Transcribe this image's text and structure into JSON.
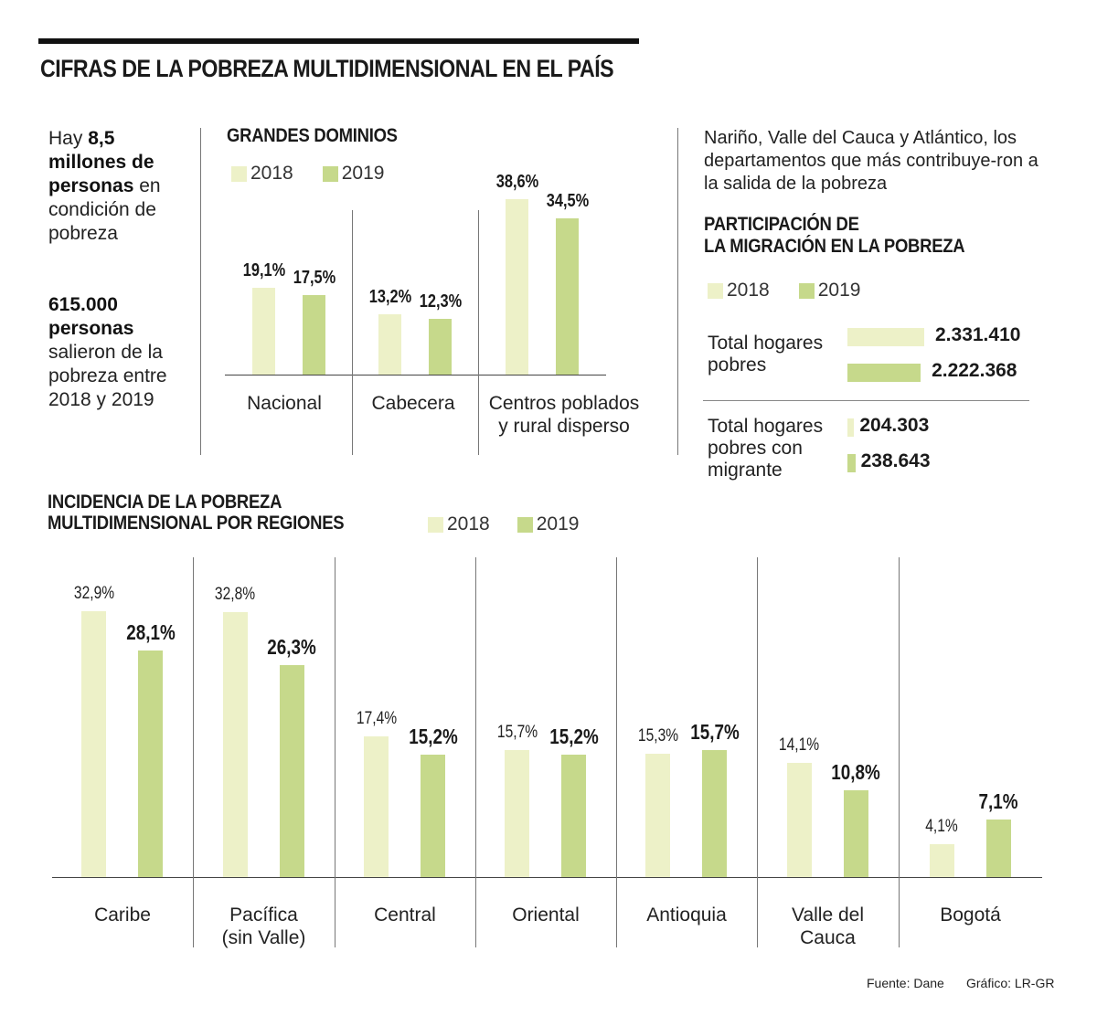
{
  "header": {
    "title": "CIFRAS DE LA POBREZA MULTIDIMENSIONAL EN EL PAÍS"
  },
  "intro": {
    "block1": {
      "prefix": "Hay ",
      "bold": "8,5 millones de personas",
      "suffix": " en condición de pobreza"
    },
    "block2": {
      "bold": "615.000 personas",
      "suffix": " salieron de la pobreza entre 2018 y 2019"
    }
  },
  "colors": {
    "y2018": "#edf1c8",
    "y2019": "#c6d98b",
    "text": "#1a1a1a",
    "rule": "#111111"
  },
  "legend": {
    "y2018": "2018",
    "y2019": "2019"
  },
  "note": "Nariño, Valle del Cauca y Atlántico, los departamentos que más contribuye-ron a la salida de la pobreza",
  "migration": {
    "title_line1": "PARTICIPACIÓN DE",
    "title_line2": "LA MIGRACIÓN EN LA POBREZA",
    "rows": [
      {
        "label": "Total hogares pobres",
        "v2018": 2331410,
        "v2019": 2222368,
        "v2018_label": "2.331.410",
        "v2019_label": "2.222.368"
      },
      {
        "label": "Total hogares pobres con migrante",
        "v2018": 204303,
        "v2019": 238643,
        "v2018_label": "204.303",
        "v2019_label": "238.643"
      }
    ]
  },
  "footer": {
    "source": "Fuente: Dane",
    "credit": "Gráfico: LR-GR"
  },
  "chart_data": [
    {
      "type": "bar",
      "title": "GRANDES DOMINIOS",
      "xlabel": "",
      "ylabel": "",
      "ylim": [
        0,
        40
      ],
      "grid": false,
      "legend": "top-left",
      "categories": [
        "Nacional",
        "Cabecera",
        "Centros poblados y rural disperso"
      ],
      "series": [
        {
          "name": "2018",
          "values": [
            19.1,
            13.2,
            38.6
          ],
          "labels": [
            "19,1%",
            "13,2%",
            "38,6%"
          ]
        },
        {
          "name": "2019",
          "values": [
            17.5,
            12.3,
            34.5
          ],
          "labels": [
            "17,5%",
            "12,3%",
            "34,5%"
          ]
        }
      ]
    },
    {
      "type": "bar",
      "title": "INCIDENCIA DE LA POBREZA MULTIDIMENSIONAL POR REGIONES",
      "xlabel": "",
      "ylabel": "",
      "ylim": [
        0,
        36
      ],
      "grid": false,
      "legend": "top-right of title",
      "categories": [
        "Caribe",
        "Pacífica (sin Valle)",
        "Central",
        "Oriental",
        "Antioquia",
        "Valle del Cauca",
        "Bogotá"
      ],
      "series": [
        {
          "name": "2018",
          "values": [
            32.9,
            32.8,
            17.4,
            15.7,
            15.3,
            14.1,
            4.1
          ],
          "labels": [
            "32,9%",
            "32,8%",
            "17,4%",
            "15,7%",
            "15,3%",
            "14,1%",
            "4,1%"
          ]
        },
        {
          "name": "2019",
          "values": [
            28.1,
            26.3,
            15.2,
            15.2,
            15.7,
            10.8,
            7.1
          ],
          "labels": [
            "28,1%",
            "26,3%",
            "15,2%",
            "15,2%",
            "15,7%",
            "10,8%",
            "7,1%"
          ]
        }
      ]
    }
  ]
}
